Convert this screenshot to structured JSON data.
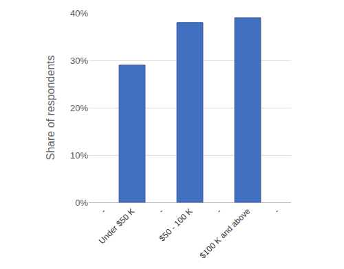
{
  "chart_data": {
    "type": "bar",
    "y_label": "Share of respondents",
    "categories": [
      "-",
      "Under $50 K",
      "-",
      "$50 - 100 K",
      "-",
      "$100 K and above",
      "-"
    ],
    "values": [
      null,
      29,
      null,
      38,
      null,
      39,
      null
    ],
    "color": "#4170c0",
    "ylim": [
      0,
      40
    ],
    "yticks": [
      {
        "value": 0,
        "label": "0%"
      },
      {
        "value": 10,
        "label": "10%"
      },
      {
        "value": 20,
        "label": "20%"
      },
      {
        "value": 30,
        "label": "30%"
      },
      {
        "value": 40,
        "label": "40%"
      }
    ],
    "grid": true
  }
}
